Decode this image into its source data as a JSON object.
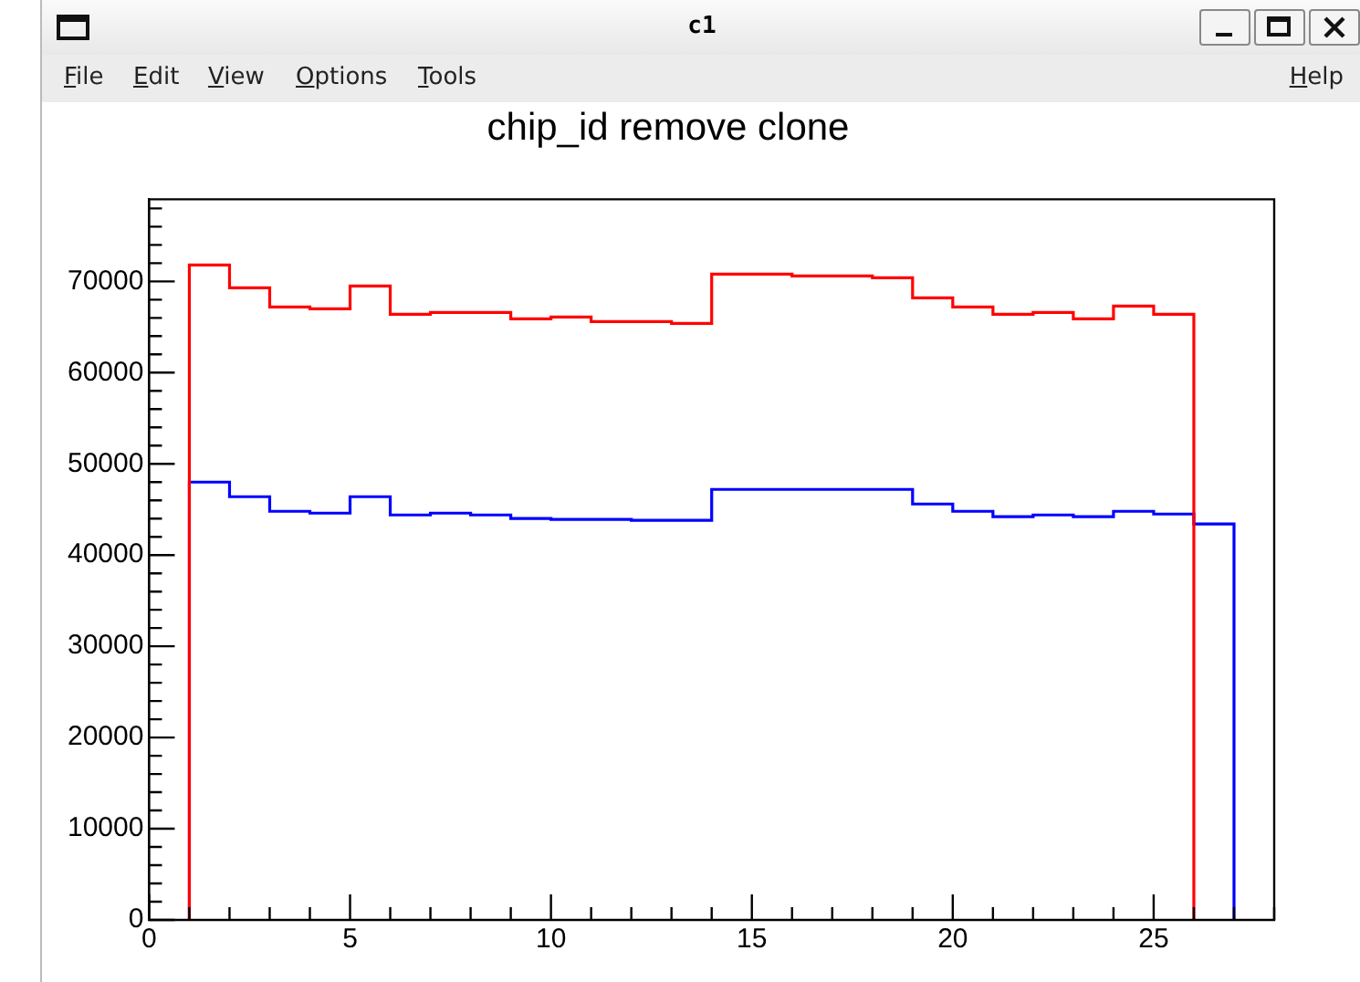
{
  "chart_data": {
    "type": "histogram",
    "title": "chip_id remove clone",
    "annotations": [
      "c1",
      "File",
      "Edit",
      "View",
      "Options",
      "Tools",
      "Help"
    ],
    "bins": [
      1,
      2,
      3,
      4,
      5,
      6,
      7,
      8,
      9,
      10,
      11,
      12,
      13,
      14,
      15,
      16,
      17,
      18,
      19,
      20,
      21,
      22,
      23,
      24,
      25,
      26,
      27
    ],
    "series": [
      {
        "color": "#ff0000",
        "bins": [
          1,
          2,
          3,
          4,
          5,
          6,
          7,
          8,
          9,
          10,
          11,
          12,
          13,
          14,
          15,
          16,
          17,
          18,
          19,
          20,
          21,
          22,
          23,
          24,
          25,
          26
        ],
        "values": [
          71800,
          69300,
          67200,
          67000,
          69500,
          66400,
          66600,
          66600,
          65900,
          66100,
          65600,
          65600,
          65400,
          70800,
          70800,
          70600,
          70600,
          70400,
          68200,
          67200,
          66400,
          66600,
          65900,
          67300,
          66400
        ]
      },
      {
        "color": "#0000ff",
        "values": [
          48000,
          46400,
          44800,
          44600,
          46400,
          44400,
          44600,
          44400,
          44000,
          43900,
          43900,
          43800,
          43800,
          47200,
          47200,
          47200,
          47200,
          47200,
          45600,
          44800,
          44200,
          44400,
          44200,
          44800,
          44500,
          43400
        ]
      }
    ],
    "xlim": [
      0,
      28
    ],
    "xticks": [
      0,
      5,
      10,
      15,
      20,
      25
    ],
    "ylim": [
      0,
      79000
    ],
    "yticks": [
      0,
      10000,
      20000,
      30000,
      40000,
      50000,
      60000,
      70000
    ],
    "grid": false,
    "legend": false
  }
}
